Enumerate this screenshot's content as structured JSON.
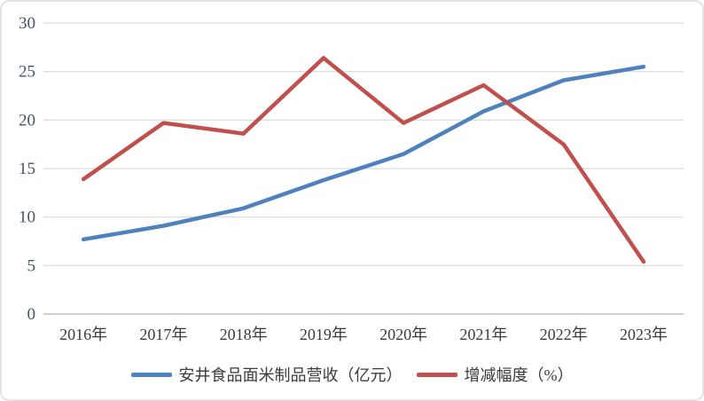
{
  "chart_data": {
    "type": "line",
    "categories": [
      "2016年",
      "2017年",
      "2018年",
      "2019年",
      "2020年",
      "2021年",
      "2022年",
      "2023年"
    ],
    "series": [
      {
        "name": "安井食品面米制品营收（亿元）",
        "color": "#4F81BD",
        "values": [
          7.7,
          9.1,
          10.9,
          13.8,
          16.5,
          20.9,
          24.1,
          25.5
        ]
      },
      {
        "name": "增减幅度（%）",
        "color": "#C0504D",
        "values": [
          13.9,
          19.7,
          18.6,
          26.4,
          19.7,
          23.6,
          17.5,
          5.4
        ]
      }
    ],
    "title": "",
    "xlabel": "",
    "ylabel": "",
    "ylim": [
      0,
      30
    ],
    "yticks": [
      0,
      5,
      10,
      15,
      20,
      25,
      30
    ],
    "grid": "horizontal-only",
    "legend_position": "bottom-center",
    "colors": {
      "gridline": "#d9d9d9",
      "axis_line": "#bfbfbf",
      "ytick_text": "#44546a",
      "xtick_text": "#3b3b3b",
      "background": "#ffffff",
      "frame_border": "#e3e3e3"
    }
  }
}
